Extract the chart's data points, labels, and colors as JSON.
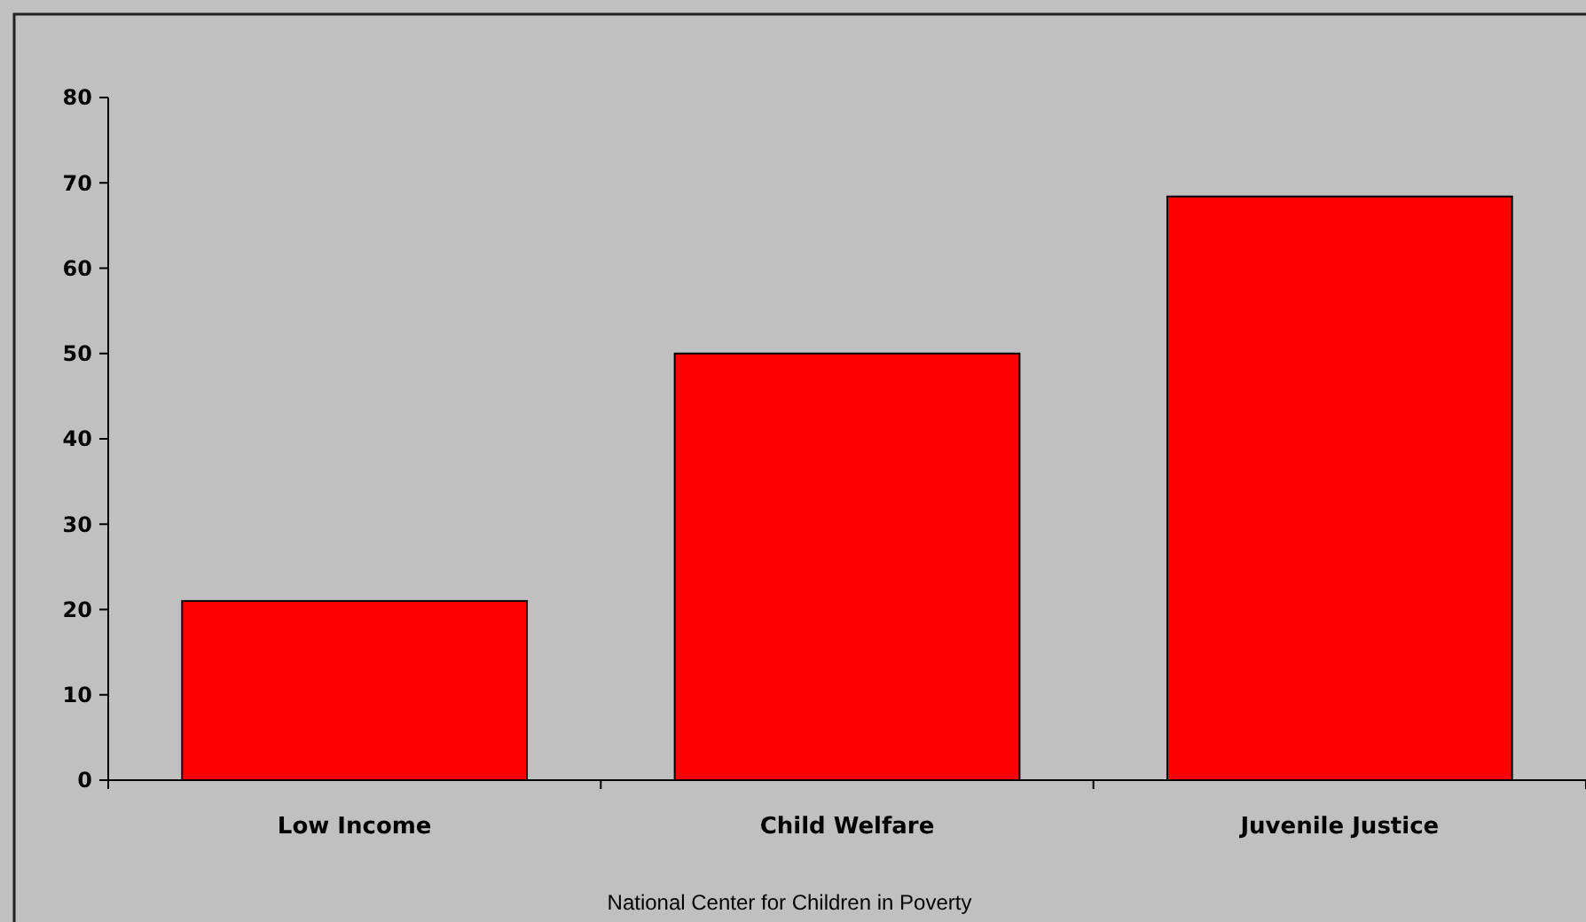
{
  "chart_data": {
    "type": "bar",
    "categories": [
      "Low Income",
      "Child Welfare",
      "Juvenile Justice"
    ],
    "values": [
      21,
      50,
      68.4
    ],
    "color": "#ff0000",
    "ylim": [
      0,
      80
    ],
    "yticks": [
      0,
      10,
      20,
      30,
      40,
      50,
      60,
      70,
      80
    ],
    "annotations": [
      "National Center for Children in Poverty"
    ]
  }
}
